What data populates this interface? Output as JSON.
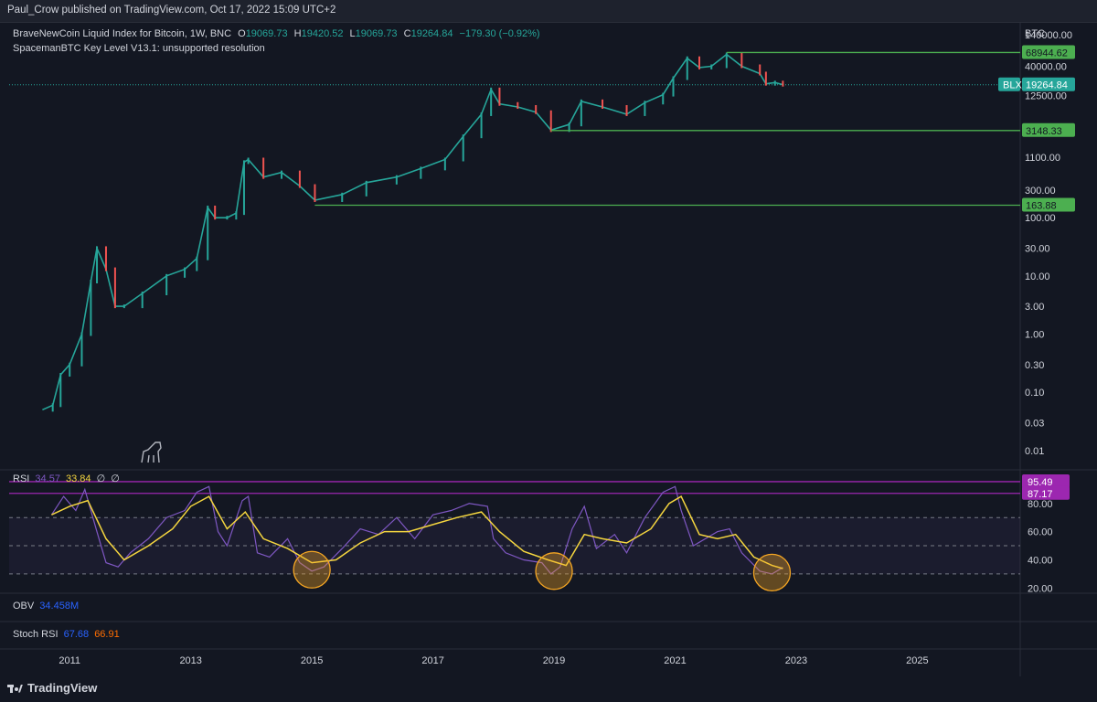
{
  "header": {
    "publisher": "Paul_Crow published on TradingView.com, Oct 17, 2022 15:09 UTC+2"
  },
  "footer": {
    "brand": "TradingView"
  },
  "legend": {
    "symbol": "BraveNewCoin Liquid Index for Bitcoin, 1W, BNC",
    "o_label": "O",
    "o": "19069.73",
    "h_label": "H",
    "h": "19420.52",
    "l_label": "L",
    "l": "19069.73",
    "c_label": "C",
    "c": "19264.84",
    "chg": "−179.30 (−0.92%)",
    "indicator": "SpacemanBTC Key Level V13.1: unsupported resolution"
  },
  "rsi_legend": {
    "name": "RSI",
    "v1": "34.57",
    "v2": "33.84",
    "v3": "∅",
    "v4": "∅"
  },
  "obv_legend": {
    "name": "OBV",
    "v1": "34.458M"
  },
  "stoch_legend": {
    "name": "Stoch RSI",
    "v1": "67.68",
    "v2": "66.91"
  },
  "currency": "BTC",
  "price_axis": [
    "140000.00",
    "40000.00",
    "12500.00",
    "1100.00",
    "300.00",
    "100.00",
    "30.00",
    "10.00",
    "3.00",
    "1.00",
    "0.30",
    "0.10",
    "0.03",
    "0.01"
  ],
  "rsi_axis": [
    "80.00",
    "60.00",
    "40.00",
    "20.00"
  ],
  "levels": [
    {
      "label": "68944.62",
      "value": 68944.62,
      "start": 2021.85,
      "color": "#4caf50"
    },
    {
      "label": "3148.33",
      "value": 3148.33,
      "start": 2018.95,
      "color": "#4caf50"
    },
    {
      "label": "163.88",
      "value": 163.88,
      "start": 2015.05,
      "color": "#4caf50"
    }
  ],
  "last_price": {
    "ticker": "BLX",
    "label": "19264.84",
    "value": 19264.84
  },
  "rsi_levels": [
    {
      "label": "95.49",
      "value": 95.49
    },
    {
      "label": "87.17",
      "value": 87.17
    }
  ],
  "x_labels": [
    "2011",
    "2013",
    "2015",
    "2017",
    "2019",
    "2021",
    "2023",
    "2025"
  ],
  "colors": {
    "up": "#26a69a",
    "down": "#ef5350",
    "rsi": "#7e57c2",
    "rsi_ma": "#f5d63f",
    "level": "#4caf50",
    "rsi_band": "#9c27b0",
    "circle": "#f5a623"
  },
  "chart_data": [
    {
      "type": "line",
      "title": "BraveNewCoin Liquid Index for Bitcoin, 1W, BNC",
      "scale": "log",
      "ylim": [
        0.005,
        200000
      ],
      "xlim": [
        2010.0,
        2026.7
      ],
      "x": [
        2010.55,
        2010.72,
        2010.85,
        2011.0,
        2011.2,
        2011.35,
        2011.45,
        2011.6,
        2011.75,
        2011.9,
        2012.2,
        2012.6,
        2012.9,
        2013.1,
        2013.28,
        2013.4,
        2013.6,
        2013.75,
        2013.88,
        2013.95,
        2014.2,
        2014.5,
        2014.8,
        2015.05,
        2015.5,
        2015.9,
        2016.4,
        2016.8,
        2017.2,
        2017.5,
        2017.8,
        2017.96,
        2018.1,
        2018.4,
        2018.7,
        2018.95,
        2019.25,
        2019.45,
        2019.8,
        2020.2,
        2020.5,
        2020.8,
        2020.97,
        2021.2,
        2021.4,
        2021.6,
        2021.85,
        2022.1,
        2022.4,
        2022.5,
        2022.65,
        2022.78
      ],
      "y": [
        0.05,
        0.06,
        0.2,
        0.3,
        1.0,
        8,
        30,
        13,
        3,
        3,
        5,
        10,
        13,
        20,
        150,
        100,
        100,
        120,
        900,
        1000,
        500,
        600,
        350,
        200,
        250,
        400,
        500,
        700,
        1000,
        2500,
        6000,
        16000,
        9000,
        8000,
        6500,
        3200,
        4000,
        10000,
        8000,
        6000,
        9500,
        13000,
        25000,
        55000,
        38000,
        40000,
        64000,
        40000,
        30000,
        20000,
        21000,
        19264.84
      ]
    },
    {
      "type": "line",
      "title": "RSI",
      "ylim": [
        15,
        100
      ],
      "series": [
        {
          "name": "RSI",
          "x": [
            2010.7,
            2010.9,
            2011.1,
            2011.25,
            2011.45,
            2011.6,
            2011.8,
            2012.0,
            2012.3,
            2012.6,
            2012.9,
            2013.1,
            2013.3,
            2013.45,
            2013.6,
            2013.85,
            2013.95,
            2014.1,
            2014.3,
            2014.6,
            2014.8,
            2015.0,
            2015.2,
            2015.5,
            2015.8,
            2016.1,
            2016.4,
            2016.7,
            2017.0,
            2017.3,
            2017.6,
            2017.9,
            2018.0,
            2018.2,
            2018.5,
            2018.8,
            2018.95,
            2019.1,
            2019.3,
            2019.5,
            2019.7,
            2020.0,
            2020.2,
            2020.5,
            2020.8,
            2021.0,
            2021.1,
            2021.3,
            2021.5,
            2021.7,
            2021.9,
            2022.1,
            2022.4,
            2022.6,
            2022.78
          ],
          "y": [
            72,
            85,
            75,
            90,
            60,
            38,
            35,
            45,
            55,
            70,
            75,
            88,
            92,
            60,
            50,
            82,
            85,
            45,
            42,
            55,
            38,
            32,
            35,
            48,
            62,
            58,
            70,
            55,
            72,
            75,
            80,
            78,
            55,
            45,
            40,
            38,
            30,
            35,
            62,
            78,
            48,
            58,
            45,
            70,
            88,
            92,
            75,
            50,
            55,
            60,
            62,
            45,
            32,
            30,
            34.57
          ]
        },
        {
          "name": "",
          "x": [
            2010.7,
            2011.0,
            2011.3,
            2011.6,
            2011.9,
            2012.3,
            2012.7,
            2013.0,
            2013.3,
            2013.6,
            2013.9,
            2014.2,
            2014.6,
            2015.0,
            2015.4,
            2015.8,
            2016.2,
            2016.6,
            2017.0,
            2017.4,
            2017.8,
            2018.1,
            2018.5,
            2018.9,
            2019.2,
            2019.5,
            2019.8,
            2020.2,
            2020.6,
            2020.9,
            2021.1,
            2021.4,
            2021.7,
            2022.0,
            2022.3,
            2022.6,
            2022.78
          ],
          "y": [
            72,
            78,
            82,
            55,
            40,
            50,
            62,
            78,
            85,
            62,
            74,
            55,
            48,
            38,
            40,
            52,
            60,
            60,
            65,
            70,
            74,
            60,
            46,
            40,
            36,
            58,
            55,
            52,
            62,
            80,
            85,
            58,
            55,
            58,
            42,
            36,
            33.84
          ]
        }
      ]
    }
  ]
}
